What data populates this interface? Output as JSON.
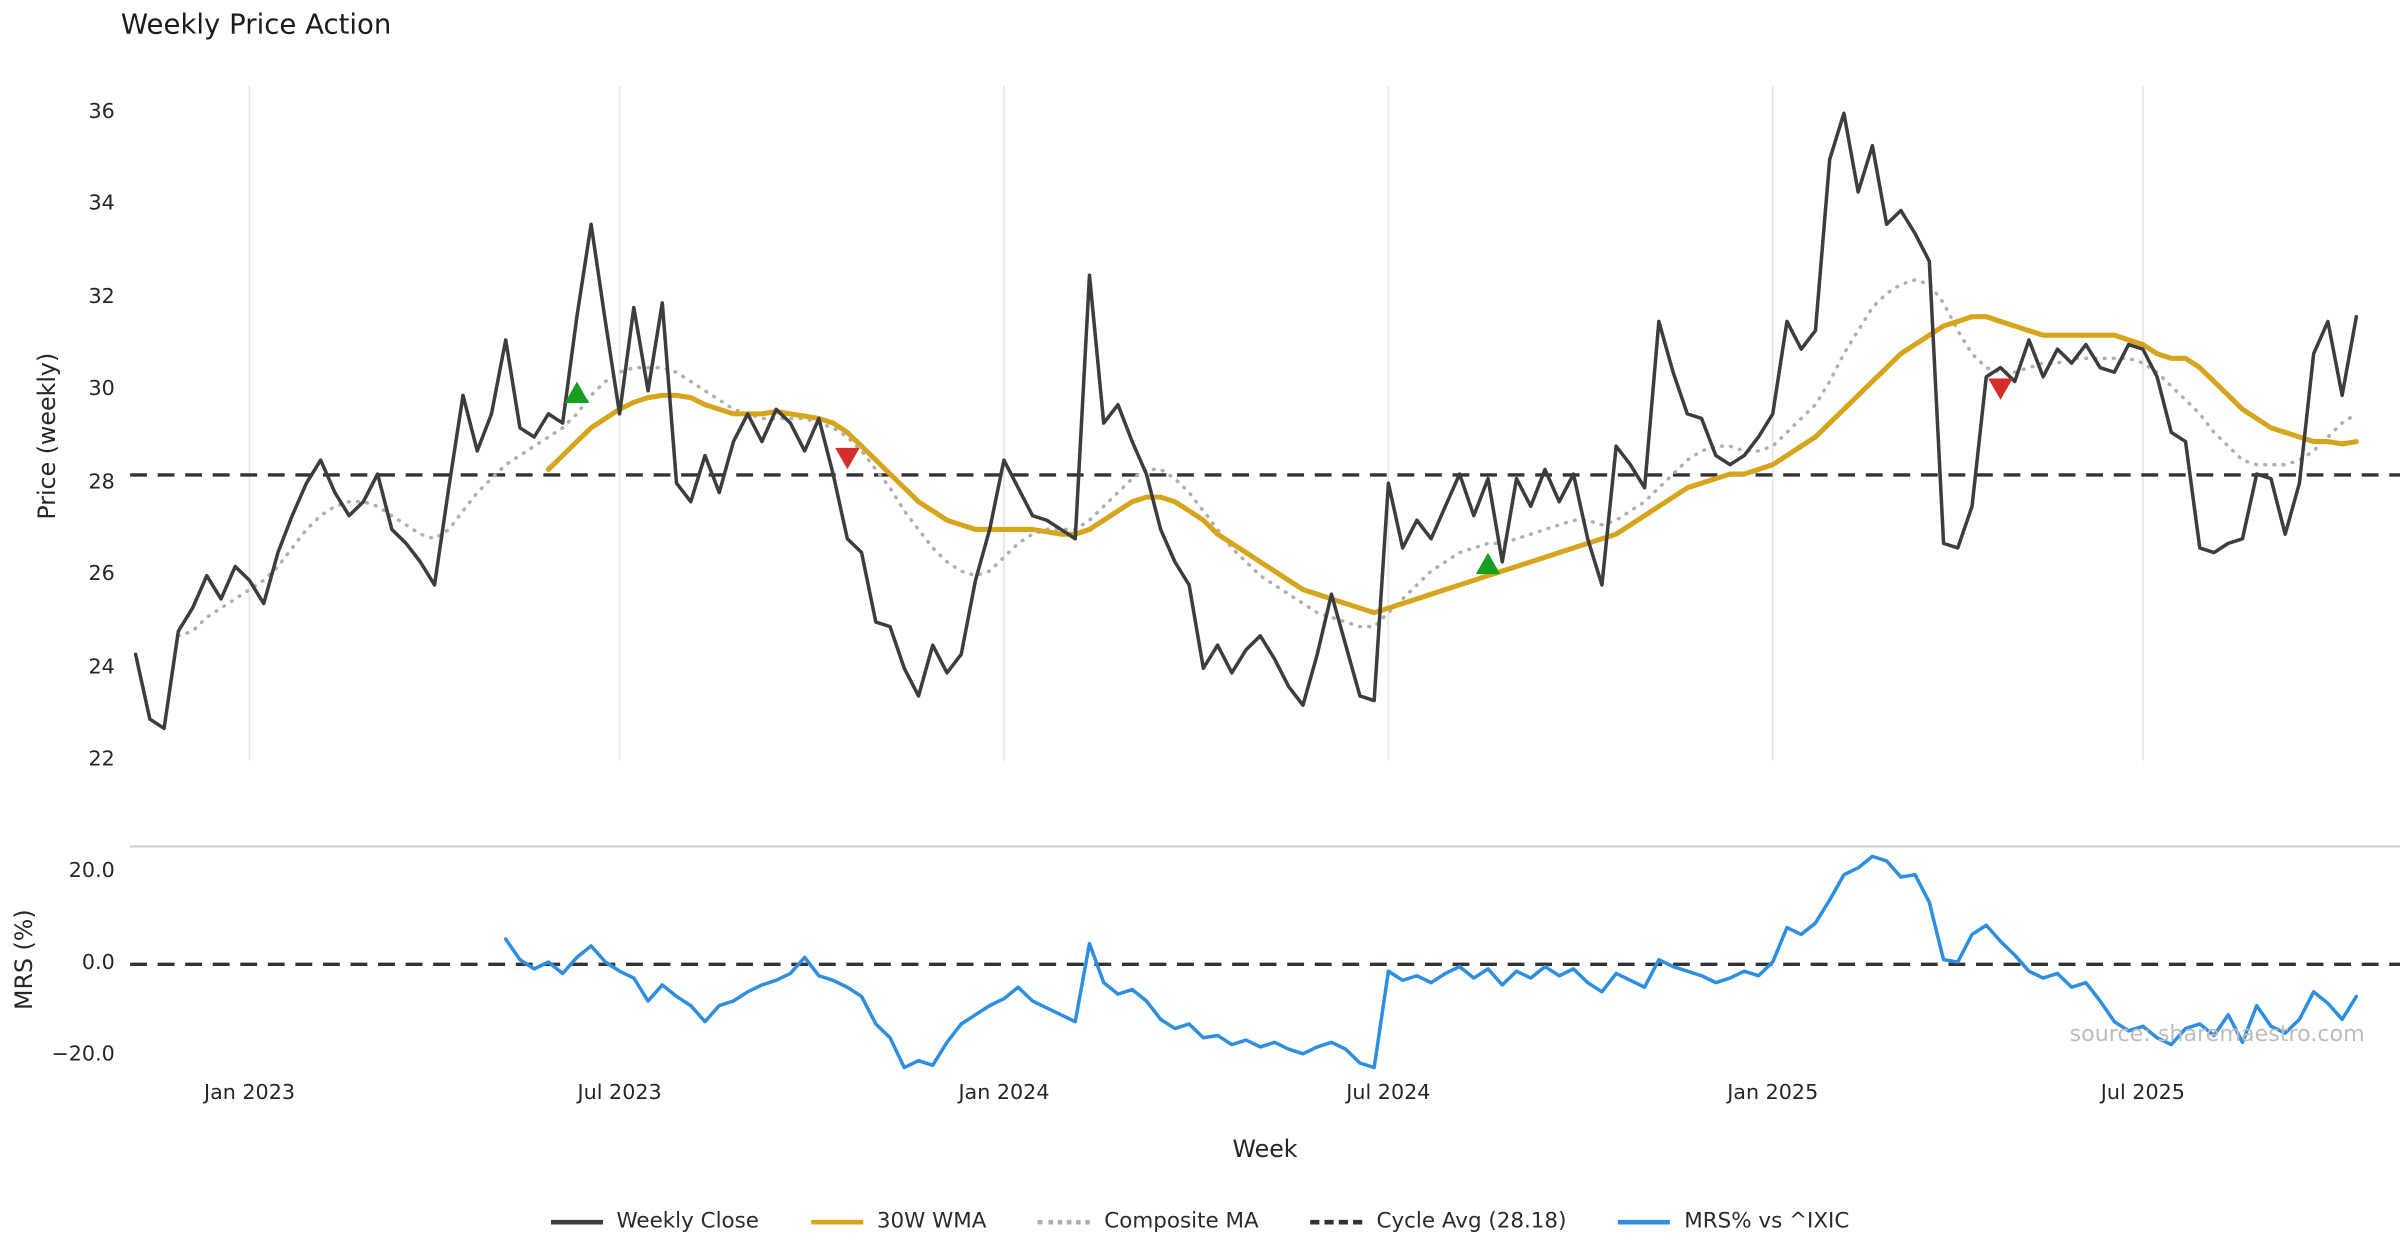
{
  "watermark": "source: sharemaestro.com",
  "legend": [
    {
      "label": "Weekly Close",
      "color": "#3d3d3d",
      "style": "solid"
    },
    {
      "label": "30W WMA",
      "color": "#d6a51c",
      "style": "solid"
    },
    {
      "label": "Composite MA",
      "color": "#b0b0b0",
      "style": "dotted"
    },
    {
      "label": "Cycle Avg (28.18)",
      "color": "#333333",
      "style": "dashed"
    },
    {
      "label": "MRS% vs ^IXIC",
      "color": "#2e8fe0",
      "style": "solid"
    }
  ],
  "chart_data": {
    "type": "line",
    "title": "Weekly Price Action",
    "x_label": "Week",
    "panels": [
      {
        "id": "price",
        "ylabel": "Price (weekly)",
        "ylim": [
          21.5,
          36.8
        ]
      },
      {
        "id": "mrs",
        "ylabel": "MRS (%)",
        "ylim": [
          -25,
          25
        ]
      }
    ],
    "x_unit": "week index, weekly spacing; index 0 = first plotted week (early Nov 2022)",
    "x_ticks": [
      {
        "index": 8,
        "label": "Jan 2023"
      },
      {
        "index": 34,
        "label": "Jul 2023"
      },
      {
        "index": 61,
        "label": "Jan 2024"
      },
      {
        "index": 88,
        "label": "Jul 2024"
      },
      {
        "index": 115,
        "label": "Jan 2025"
      },
      {
        "index": 141,
        "label": "Jul 2025"
      }
    ],
    "price_ticks": [
      22,
      24,
      26,
      28,
      30,
      32,
      34,
      36
    ],
    "mrs_ticks": [
      {
        "v": 20,
        "label": "20.0"
      },
      {
        "v": 0,
        "label": "0.0"
      },
      {
        "v": -20,
        "label": "−20.0"
      }
    ],
    "cycle_avg": 28.18,
    "series": [
      {
        "id": "close",
        "name": "Weekly Close",
        "panel": "price",
        "start": 0,
        "values": [
          24.3,
          22.9,
          22.7,
          24.8,
          25.3,
          26.0,
          25.5,
          26.2,
          25.9,
          25.4,
          26.5,
          27.3,
          28.0,
          28.5,
          27.8,
          27.3,
          27.6,
          28.2,
          27.0,
          26.7,
          26.3,
          25.8,
          27.9,
          29.9,
          28.7,
          29.5,
          31.1,
          29.2,
          29.0,
          29.5,
          29.3,
          31.6,
          33.6,
          31.5,
          29.5,
          31.8,
          30.0,
          31.9,
          28.0,
          27.6,
          28.6,
          27.8,
          28.9,
          29.5,
          28.9,
          29.6,
          29.3,
          28.7,
          29.4,
          28.2,
          26.8,
          26.5,
          25.0,
          24.9,
          24.0,
          23.4,
          24.5,
          23.9,
          24.3,
          25.9,
          27.0,
          28.5,
          27.9,
          27.3,
          27.2,
          27.0,
          26.8,
          32.5,
          29.3,
          29.7,
          28.9,
          28.2,
          27.0,
          26.3,
          25.8,
          24.0,
          24.5,
          23.9,
          24.4,
          24.7,
          24.2,
          23.6,
          23.2,
          24.3,
          25.6,
          24.5,
          23.4,
          23.3,
          28.0,
          26.6,
          27.2,
          26.8,
          27.5,
          28.2,
          27.3,
          28.1,
          26.3,
          28.1,
          27.5,
          28.3,
          27.6,
          28.2,
          26.8,
          25.8,
          28.8,
          28.4,
          27.9,
          31.5,
          30.4,
          29.5,
          29.4,
          28.6,
          28.4,
          28.6,
          29.0,
          29.5,
          31.5,
          30.9,
          31.3,
          35.0,
          36.0,
          34.3,
          35.3,
          33.6,
          33.9,
          33.4,
          32.8,
          26.7,
          26.6,
          27.5,
          30.3,
          30.5,
          30.2,
          31.1,
          30.3,
          30.9,
          30.6,
          31.0,
          30.5,
          30.4,
          31.0,
          30.9,
          30.3,
          29.1,
          28.9,
          26.6,
          26.5,
          26.7,
          26.8,
          28.2,
          28.1,
          26.9,
          28.0,
          30.8,
          31.5,
          29.9,
          31.6
        ]
      },
      {
        "id": "wma",
        "name": "30W WMA",
        "panel": "price",
        "start": 29,
        "values": [
          28.3,
          28.6,
          28.9,
          29.2,
          29.4,
          29.6,
          29.75,
          29.85,
          29.9,
          29.9,
          29.85,
          29.7,
          29.6,
          29.5,
          29.5,
          29.5,
          29.55,
          29.5,
          29.45,
          29.4,
          29.3,
          29.1,
          28.8,
          28.5,
          28.2,
          27.9,
          27.6,
          27.4,
          27.2,
          27.1,
          27.0,
          27.0,
          27.0,
          27.0,
          27.0,
          26.95,
          26.9,
          26.9,
          27.0,
          27.2,
          27.4,
          27.6,
          27.7,
          27.7,
          27.6,
          27.4,
          27.2,
          26.9,
          26.7,
          26.5,
          26.3,
          26.1,
          25.9,
          25.7,
          25.6,
          25.5,
          25.4,
          25.3,
          25.2,
          25.3,
          25.4,
          25.5,
          25.6,
          25.7,
          25.8,
          25.9,
          26.0,
          26.1,
          26.2,
          26.3,
          26.4,
          26.5,
          26.6,
          26.7,
          26.8,
          26.9,
          27.1,
          27.3,
          27.5,
          27.7,
          27.9,
          28.0,
          28.1,
          28.2,
          28.2,
          28.3,
          28.4,
          28.6,
          28.8,
          29.0,
          29.3,
          29.6,
          29.9,
          30.2,
          30.5,
          30.8,
          31.0,
          31.2,
          31.4,
          31.5,
          31.6,
          31.6,
          31.5,
          31.4,
          31.3,
          31.2,
          31.2,
          31.2,
          31.2,
          31.2,
          31.2,
          31.1,
          31.0,
          30.8,
          30.7,
          30.7,
          30.5,
          30.2,
          29.9,
          29.6,
          29.4,
          29.2,
          29.1,
          29.0,
          28.9,
          28.9,
          28.85,
          28.9
        ]
      },
      {
        "id": "composite",
        "name": "Composite MA",
        "panel": "price",
        "start": 3,
        "values": [
          24.7,
          24.8,
          25.1,
          25.3,
          25.5,
          25.7,
          25.9,
          26.2,
          26.6,
          27.0,
          27.3,
          27.5,
          27.6,
          27.6,
          27.5,
          27.3,
          27.1,
          26.9,
          26.8,
          27.0,
          27.4,
          27.8,
          28.1,
          28.4,
          28.6,
          28.8,
          29.0,
          29.2,
          29.5,
          29.9,
          30.2,
          30.4,
          30.5,
          30.5,
          30.5,
          30.4,
          30.2,
          30.0,
          29.8,
          29.6,
          29.5,
          29.4,
          29.4,
          29.4,
          29.4,
          29.3,
          29.2,
          29.0,
          28.7,
          28.3,
          27.9,
          27.4,
          27.0,
          26.6,
          26.3,
          26.1,
          26.0,
          26.1,
          26.4,
          26.7,
          26.9,
          27.0,
          27.0,
          27.0,
          27.2,
          27.5,
          27.8,
          28.1,
          28.3,
          28.3,
          28.1,
          27.8,
          27.4,
          27.0,
          26.6,
          26.3,
          26.0,
          25.8,
          25.6,
          25.4,
          25.2,
          25.1,
          25.0,
          24.9,
          24.9,
          25.2,
          25.5,
          25.8,
          26.1,
          26.3,
          26.5,
          26.6,
          26.7,
          26.7,
          26.8,
          26.9,
          27.0,
          27.1,
          27.2,
          27.2,
          27.1,
          27.2,
          27.4,
          27.6,
          27.9,
          28.2,
          28.5,
          28.7,
          28.8,
          28.8,
          28.7,
          28.7,
          28.8,
          29.1,
          29.4,
          29.7,
          30.2,
          30.8,
          31.3,
          31.8,
          32.1,
          32.3,
          32.4,
          32.3,
          31.9,
          31.3,
          30.8,
          30.5,
          30.4,
          30.4,
          30.5,
          30.6,
          30.6,
          30.7,
          30.7,
          30.7,
          30.7,
          30.7,
          30.6,
          30.4,
          30.1,
          29.8,
          29.5,
          29.1,
          28.8,
          28.5,
          28.4,
          28.4,
          28.4,
          28.5,
          28.7,
          29.0,
          29.3,
          29.5
        ]
      },
      {
        "id": "mrs",
        "name": "MRS% vs ^IXIC",
        "panel": "mrs",
        "start": 26,
        "values": [
          5.5,
          1.0,
          -1.0,
          0.5,
          -2.0,
          1.5,
          4.0,
          0.5,
          -1.5,
          -3.0,
          -8.0,
          -4.5,
          -7.0,
          -9.0,
          -12.5,
          -9.0,
          -8.0,
          -6.0,
          -4.5,
          -3.5,
          -2.0,
          1.5,
          -2.5,
          -3.5,
          -5.0,
          -7.0,
          -13.0,
          -16.0,
          -22.5,
          -21.0,
          -22.0,
          -17.0,
          -13.0,
          -11.0,
          -9.0,
          -7.5,
          -5.0,
          -8.0,
          -9.5,
          -11.0,
          -12.5,
          4.5,
          -4.0,
          -6.5,
          -5.5,
          -8.0,
          -12.0,
          -14.0,
          -13.0,
          -16.0,
          -15.5,
          -17.5,
          -16.5,
          -18.0,
          -17.0,
          -18.5,
          -19.5,
          -18.0,
          -17.0,
          -18.5,
          -21.5,
          -22.5,
          -1.5,
          -3.5,
          -2.5,
          -4.0,
          -2.0,
          -0.5,
          -3.0,
          -1.0,
          -4.5,
          -1.5,
          -3.0,
          -0.5,
          -2.5,
          -1.0,
          -4.0,
          -6.0,
          -2.0,
          -3.5,
          -5.0,
          1.0,
          -0.5,
          -1.5,
          -2.5,
          -4.0,
          -3.0,
          -1.5,
          -2.5,
          0.5,
          8.0,
          6.5,
          9.0,
          14.0,
          19.5,
          21.0,
          23.5,
          22.5,
          19.0,
          19.5,
          13.5,
          1.0,
          0.5,
          6.5,
          8.5,
          5.0,
          2.0,
          -1.5,
          -3.0,
          -2.0,
          -5.0,
          -4.0,
          -8.0,
          -12.5,
          -14.5,
          -13.5,
          -16.0,
          -17.5,
          -14.0,
          -13.0,
          -15.5,
          -11.0,
          -17.0,
          -9.0,
          -13.5,
          -15.0,
          -12.0,
          -6.0,
          -8.5,
          -12.0,
          -7.0
        ]
      }
    ],
    "markers": [
      {
        "type": "buy",
        "week": 31,
        "price": 29.9
      },
      {
        "type": "sell",
        "week": 50,
        "price": 28.6
      },
      {
        "type": "buy",
        "week": 95,
        "price": 26.2
      },
      {
        "type": "sell",
        "week": 131,
        "price": 30.1
      }
    ],
    "colors": {
      "close": "#3d3d3d",
      "wma": "#d6a51c",
      "composite": "#b0b0b0",
      "cycle": "#333333",
      "mrs": "#2e8fe0",
      "buy": "#16a022",
      "sell": "#d62c2c",
      "grid": "#e7e7e7"
    }
  }
}
